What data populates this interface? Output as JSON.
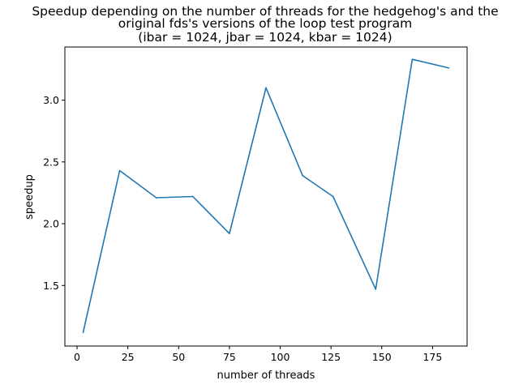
{
  "chart_data": {
    "type": "line",
    "title_lines": [
      "Speedup depending on the number of threads for the hedgehog's and the",
      "original fds's versions of the loop test program",
      "(ibar = 1024, jbar = 1024, kbar = 1024)"
    ],
    "xlabel": "number of threads",
    "ylabel": "speedup",
    "x_ticks": [
      0,
      25,
      50,
      75,
      100,
      125,
      150,
      175
    ],
    "y_ticks": [
      1.5,
      2.0,
      2.5,
      3.0
    ],
    "x_tick_labels": [
      "0",
      "25",
      "50",
      "75",
      "100",
      "125",
      "150",
      "175"
    ],
    "y_tick_labels": [
      "1.5",
      "2.0",
      "2.5",
      "3.0"
    ],
    "xlim": [
      -6,
      192
    ],
    "ylim": [
      1.01,
      3.43
    ],
    "grid": false,
    "series": [
      {
        "color": "#1f77b4",
        "x": [
          3,
          21,
          39,
          57,
          75,
          93,
          111,
          126,
          147,
          165,
          183
        ],
        "y": [
          1.12,
          2.43,
          2.21,
          2.22,
          1.92,
          3.1,
          2.39,
          2.22,
          1.47,
          3.33,
          3.26
        ]
      }
    ]
  }
}
